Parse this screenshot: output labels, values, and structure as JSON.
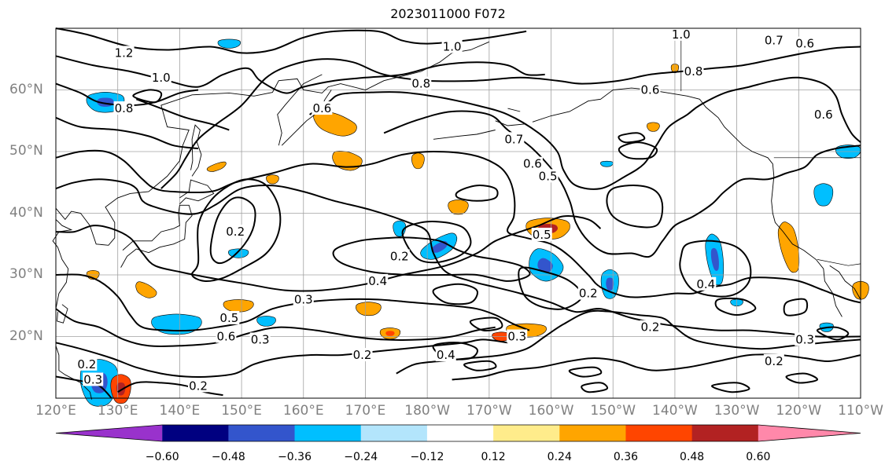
{
  "title": "2023011000 F072",
  "colors": {
    "frame": "#000000",
    "grid": "#a0a0a0",
    "land": "#000000",
    "contour": "#000000",
    "axis_label": "#808080"
  },
  "axes": {
    "lat_labels": [
      {
        "lat": 60,
        "text": "60°N"
      },
      {
        "lat": 50,
        "text": "50°N"
      },
      {
        "lat": 40,
        "text": "40°N"
      },
      {
        "lat": 30,
        "text": "30°N"
      },
      {
        "lat": 20,
        "text": "20°N"
      }
    ],
    "lon_labels": [
      {
        "lon": 120,
        "text": "120°E"
      },
      {
        "lon": 130,
        "text": "130°E"
      },
      {
        "lon": 140,
        "text": "140°E"
      },
      {
        "lon": 150,
        "text": "150°E"
      },
      {
        "lon": 160,
        "text": "160°E"
      },
      {
        "lon": 170,
        "text": "170°E"
      },
      {
        "lon": 180,
        "text": "180°W"
      },
      {
        "lon": 190,
        "text": "170°W"
      },
      {
        "lon": 200,
        "text": "160°W"
      },
      {
        "lon": 210,
        "text": "150°W"
      },
      {
        "lon": 220,
        "text": "140°W"
      },
      {
        "lon": 230,
        "text": "130°W"
      },
      {
        "lon": 240,
        "text": "120°W"
      },
      {
        "lon": 250,
        "text": "110°W"
      }
    ],
    "lon_range": [
      120,
      250
    ],
    "lat_range": [
      10,
      70
    ]
  },
  "colorbar": {
    "colors": [
      "#9932cc",
      "#000080",
      "#3355cc",
      "#00bfff",
      "#b3e5fc",
      "#ffffff",
      "#ffec8b",
      "#ffa500",
      "#ff4500",
      "#b22222",
      "#ff88aa"
    ],
    "ticks": [
      "−0.60",
      "−0.48",
      "−0.36",
      "−0.24",
      "−0.12",
      "0.12",
      "0.24",
      "0.36",
      "0.48",
      "0.60"
    ],
    "extend": "both"
  },
  "contour_labels": [
    {
      "text": "1.2",
      "lon": 131,
      "lat": 66
    },
    {
      "text": "1.0",
      "lon": 137,
      "lat": 62
    },
    {
      "text": "0.8",
      "lon": 131,
      "lat": 57
    },
    {
      "text": "1.0",
      "lon": 184,
      "lat": 67
    },
    {
      "text": "1.0",
      "lon": 221,
      "lat": 69
    },
    {
      "text": "0.7",
      "lon": 236,
      "lat": 68
    },
    {
      "text": "0.6",
      "lon": 241,
      "lat": 67.5
    },
    {
      "text": "0.8",
      "lon": 223,
      "lat": 63
    },
    {
      "text": "0.8",
      "lon": 179,
      "lat": 61
    },
    {
      "text": "0.6",
      "lon": 163,
      "lat": 57
    },
    {
      "text": "0.6",
      "lon": 216,
      "lat": 60
    },
    {
      "text": "0.6",
      "lon": 244,
      "lat": 56
    },
    {
      "text": "0.7",
      "lon": 194,
      "lat": 52
    },
    {
      "text": "0.6",
      "lon": 197,
      "lat": 48
    },
    {
      "text": "0.5",
      "lon": 199.5,
      "lat": 46
    },
    {
      "text": "0.2",
      "lon": 149,
      "lat": 37
    },
    {
      "text": "0.2",
      "lon": 175.5,
      "lat": 33
    },
    {
      "text": "0.5",
      "lon": 198.5,
      "lat": 36.5
    },
    {
      "text": "0.4",
      "lon": 172,
      "lat": 29
    },
    {
      "text": "0.3",
      "lon": 160,
      "lat": 26
    },
    {
      "text": "0.5",
      "lon": 148,
      "lat": 23
    },
    {
      "text": "0.6",
      "lon": 147.5,
      "lat": 20
    },
    {
      "text": "0.3",
      "lon": 153,
      "lat": 19.5
    },
    {
      "text": "0.2",
      "lon": 169.5,
      "lat": 17
    },
    {
      "text": "0.4",
      "lon": 183,
      "lat": 17
    },
    {
      "text": "0.3",
      "lon": 194.5,
      "lat": 20
    },
    {
      "text": "0.2",
      "lon": 206,
      "lat": 27
    },
    {
      "text": "0.4",
      "lon": 225,
      "lat": 28.5
    },
    {
      "text": "0.2",
      "lon": 216,
      "lat": 21.5
    },
    {
      "text": "0.3",
      "lon": 241,
      "lat": 19.5
    },
    {
      "text": "0.2",
      "lon": 236,
      "lat": 16
    },
    {
      "text": "0.2",
      "lon": 125,
      "lat": 15.5
    },
    {
      "text": "0.3",
      "lon": 126,
      "lat": 13
    },
    {
      "text": "0.2",
      "lon": 143,
      "lat": 12
    }
  ]
}
